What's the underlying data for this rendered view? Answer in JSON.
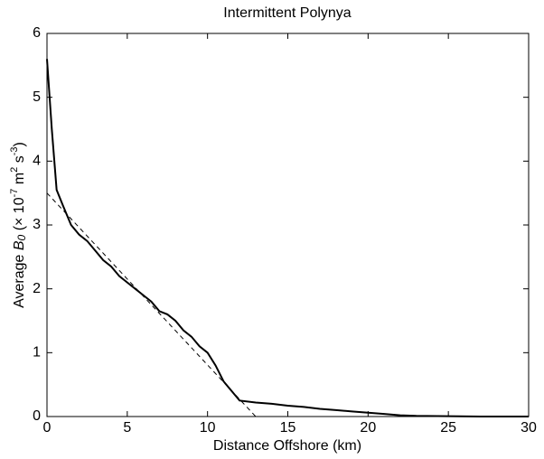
{
  "chart_data": {
    "type": "line",
    "title": "Intermittent Polynya",
    "xlabel": "Distance Offshore (km)",
    "ylabel": [
      "Average ",
      "B",
      "0",
      " (× 10",
      "-7",
      " m",
      "2",
      " s",
      "-3",
      ")"
    ],
    "xlim": [
      0,
      30
    ],
    "xticks": [
      0,
      5,
      10,
      15,
      20,
      25,
      30
    ],
    "ylim": [
      0,
      6
    ],
    "yticks": [
      0,
      1,
      2,
      3,
      4,
      5,
      6
    ],
    "series": [
      {
        "color": "#000000",
        "style": "solid",
        "x": [
          0,
          0.3,
          0.6,
          1,
          1.5,
          2,
          2.5,
          3,
          3.5,
          4,
          4.5,
          5,
          5.5,
          6,
          6.5,
          7,
          7.5,
          8,
          8.5,
          9,
          9.5,
          10,
          10.5,
          11,
          11.5,
          12,
          13,
          14,
          15,
          16,
          17,
          18,
          19,
          20,
          21,
          22,
          23,
          25,
          27,
          30
        ],
        "values": [
          5.6,
          4.5,
          3.55,
          3.3,
          3.0,
          2.85,
          2.75,
          2.6,
          2.45,
          2.35,
          2.2,
          2.1,
          2.0,
          1.9,
          1.8,
          1.65,
          1.6,
          1.5,
          1.35,
          1.25,
          1.1,
          1.0,
          0.8,
          0.55,
          0.4,
          0.25,
          0.22,
          0.2,
          0.17,
          0.15,
          0.12,
          0.1,
          0.08,
          0.06,
          0.04,
          0.02,
          0.01,
          0.005,
          0,
          0
        ]
      },
      {
        "color": "#000000",
        "style": "dashed",
        "x": [
          0,
          13
        ],
        "values": [
          3.5,
          0
        ]
      }
    ]
  }
}
